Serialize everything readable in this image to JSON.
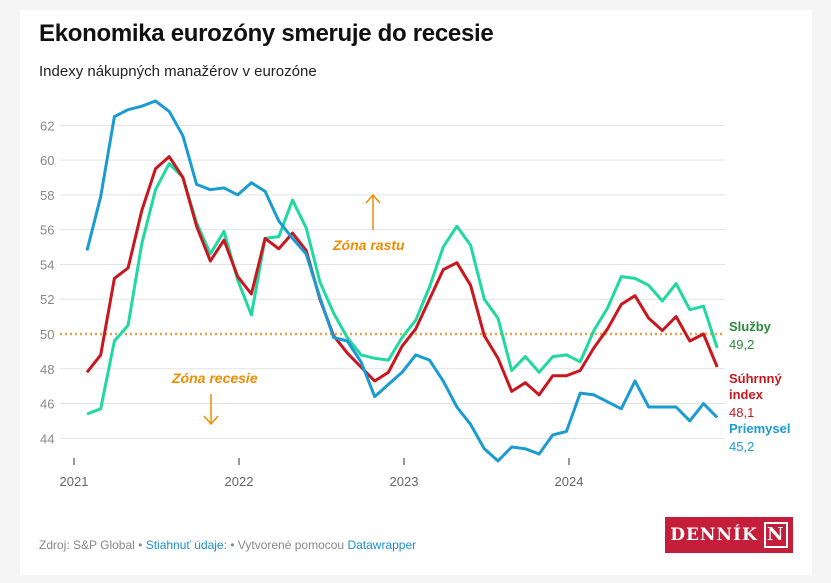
{
  "title": "Ekonomika eurozóny smeruje do recesie",
  "subtitle": "Indexy nákupných manažérov v eurozóne",
  "chart_data": {
    "type": "line",
    "title": "Ekonomika eurozóny smeruje do recesie",
    "subtitle": "Indexy nákupných manažérov v eurozóne",
    "x_start": "2021-01",
    "x_end": "2024-11",
    "x_ticks": [
      "2021",
      "2022",
      "2023",
      "2024"
    ],
    "y_ticks": [
      44,
      46,
      48,
      50,
      52,
      54,
      56,
      58,
      60,
      62
    ],
    "ylim": [
      42.5,
      63.5
    ],
    "grid": true,
    "reference_line": {
      "value": 50,
      "color": "#e8a04a"
    },
    "annotations": [
      {
        "text": "Zóna rastu",
        "arrow": "up"
      },
      {
        "text": "Zóna recesie",
        "arrow": "down"
      }
    ],
    "series": [
      {
        "name": "Služby",
        "last_label": "49,2",
        "color": "#1fd9a0",
        "label_color": "#2a8a3a",
        "values": [
          45.4,
          45.7,
          49.6,
          50.5,
          55.2,
          58.3,
          59.8,
          59.0,
          56.4,
          54.6,
          55.9,
          53.1,
          51.1,
          55.5,
          55.6,
          57.7,
          56.1,
          53.0,
          51.2,
          49.8,
          48.8,
          48.6,
          48.5,
          49.8,
          50.8,
          52.7,
          55.0,
          56.2,
          55.1,
          52.0,
          50.9,
          47.9,
          48.7,
          47.8,
          48.7,
          48.8,
          48.4,
          50.2,
          51.5,
          53.3,
          53.2,
          52.8,
          51.9,
          52.9,
          51.4,
          51.6,
          49.2
        ]
      },
      {
        "name": "Súhrnný index",
        "last_label": "48,1",
        "color": "#c8171e",
        "label_color": "#c8171e",
        "values": [
          47.8,
          48.8,
          53.2,
          53.8,
          57.1,
          59.5,
          60.2,
          59.0,
          56.2,
          54.2,
          55.4,
          53.3,
          52.3,
          55.5,
          54.9,
          55.8,
          54.8,
          52.0,
          49.9,
          48.9,
          48.1,
          47.3,
          47.8,
          49.3,
          50.3,
          52.0,
          53.7,
          54.1,
          52.8,
          49.9,
          48.6,
          46.7,
          47.2,
          46.5,
          47.6,
          47.6,
          47.9,
          49.2,
          50.3,
          51.7,
          52.2,
          50.9,
          50.2,
          51.0,
          49.6,
          50.0,
          48.1
        ]
      },
      {
        "name": "Priemysel",
        "last_label": "45,2",
        "color": "#1a9bd1",
        "label_color": "#1a9bd1",
        "values": [
          54.8,
          57.9,
          62.5,
          62.9,
          63.1,
          63.4,
          62.8,
          61.4,
          58.6,
          58.3,
          58.4,
          58.0,
          58.7,
          58.2,
          56.5,
          55.5,
          54.6,
          52.1,
          49.8,
          49.6,
          48.4,
          46.4,
          47.1,
          47.8,
          48.8,
          48.5,
          47.3,
          45.8,
          44.8,
          43.4,
          42.7,
          43.5,
          43.4,
          43.1,
          44.2,
          44.4,
          46.6,
          46.5,
          46.1,
          45.7,
          47.3,
          45.8,
          45.8,
          45.8,
          45.0,
          46.0,
          45.2
        ]
      }
    ]
  },
  "footer": {
    "source": "Zdroj: S&P Global • ",
    "download": "Stiahnuť údaje:",
    "created": " • Vytvorené pomocou ",
    "tool": "Datawrapper"
  },
  "logo": {
    "text": "DENNÍK",
    "mark": "N"
  }
}
